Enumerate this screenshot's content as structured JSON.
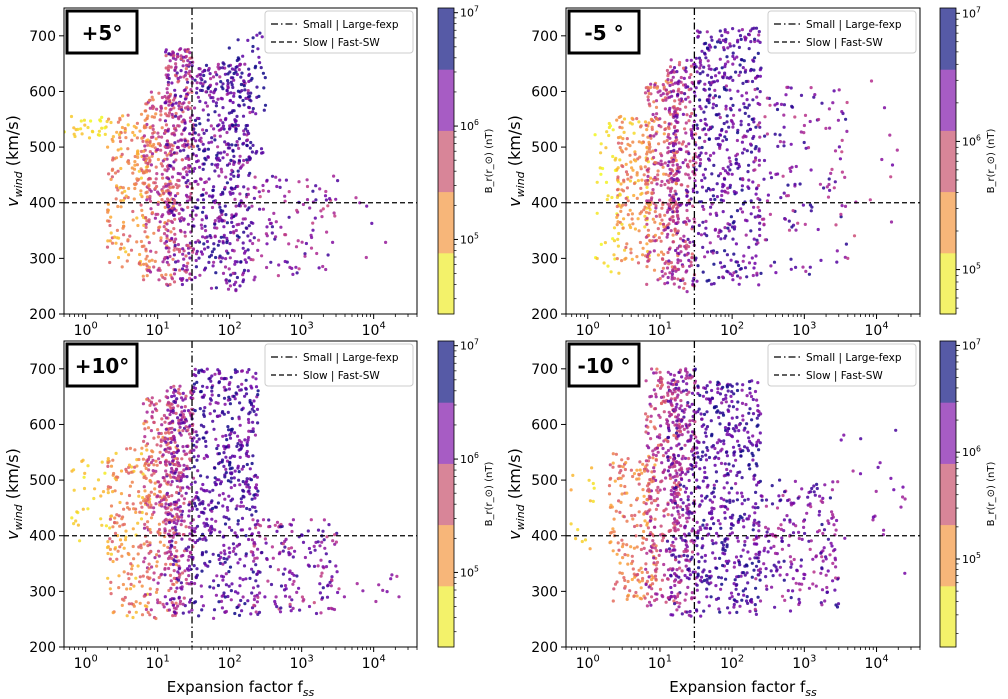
{
  "figure": {
    "xlabel": "Expansion factor f",
    "xlabel_sub": "ss",
    "ylabel": "v",
    "ylabel_sub": "wind",
    "ylabel_unit": " (km/s)",
    "colorbar_label": "B_r(r_⊙) (nT)",
    "legend": [
      {
        "label": "Small | Large-fexp",
        "style": "dashdot"
      },
      {
        "label": "Slow | Fast-SW",
        "style": "dashed"
      }
    ],
    "colormap": [
      "#f0f921",
      "#fca636",
      "#e16462",
      "#b12a90",
      "#6a00a8",
      "#0d0887"
    ],
    "colorbar_bands": [
      "#f3f26a",
      "#f7b679",
      "#d88598",
      "#a75cc4",
      "#565aa6"
    ]
  },
  "chart_data": [
    {
      "type": "scatter",
      "panel_label": "+5°",
      "xscale": "log",
      "xlim": [
        0.5,
        40000
      ],
      "ylim": [
        200,
        750
      ],
      "x_ticks": [
        {
          "v": 1,
          "e": "0"
        },
        {
          "v": 10,
          "e": "1"
        },
        {
          "v": 100,
          "e": "2"
        },
        {
          "v": 1000,
          "e": "3"
        },
        {
          "v": 10000,
          "e": "4"
        }
      ],
      "y_ticks": [
        200,
        300,
        400,
        500,
        600,
        700
      ],
      "vline_x": 30,
      "hline_y": 400,
      "legend_loc": "upper right",
      "colorbar": {
        "scale": "log",
        "ticks": [
          {
            "v": 100000,
            "e": "5"
          },
          {
            "v": 1000000,
            "e": "6"
          },
          {
            "v": 10000000,
            "e": "7"
          }
        ],
        "range": [
          22000,
          11000000
        ]
      },
      "clusters": [
        {
          "x_log": [
            -0.3,
            0.3
          ],
          "y": [
            510,
            560
          ],
          "c_log": [
            4.3,
            4.8
          ],
          "n": 28
        },
        {
          "x_log": [
            0.3,
            0.9
          ],
          "y": [
            280,
            560
          ],
          "c_log": [
            4.6,
            5.6
          ],
          "n": 190
        },
        {
          "x_log": [
            0.8,
            1.25
          ],
          "y": [
            260,
            600
          ],
          "c_log": [
            5.0,
            6.2
          ],
          "n": 250
        },
        {
          "x_log": [
            1.1,
            1.5
          ],
          "y": [
            250,
            680
          ],
          "c_log": [
            5.4,
            6.8
          ],
          "n": 360
        },
        {
          "x_log": [
            1.5,
            2.3
          ],
          "y": [
            240,
            650
          ],
          "c_log": [
            6.0,
            7.1
          ],
          "n": 480
        },
        {
          "x_log": [
            1.9,
            2.5
          ],
          "y": [
            480,
            715
          ],
          "c_log": [
            6.5,
            7.1
          ],
          "n": 80
        },
        {
          "x_log": [
            2.3,
            3.5
          ],
          "y": [
            260,
            450
          ],
          "c_log": [
            5.7,
            6.9
          ],
          "n": 110
        },
        {
          "x_log": [
            3.5,
            4.2
          ],
          "y": [
            290,
            420
          ],
          "c_log": [
            5.7,
            6.6
          ],
          "n": 6
        }
      ]
    },
    {
      "type": "scatter",
      "panel_label": "-5 °",
      "xscale": "log",
      "xlim": [
        0.5,
        40000
      ],
      "ylim": [
        200,
        750
      ],
      "x_ticks": [
        {
          "v": 1,
          "e": "0"
        },
        {
          "v": 10,
          "e": "1"
        },
        {
          "v": 100,
          "e": "2"
        },
        {
          "v": 1000,
          "e": "3"
        },
        {
          "v": 10000,
          "e": "4"
        }
      ],
      "y_ticks": [
        200,
        300,
        400,
        500,
        600,
        700
      ],
      "vline_x": 30,
      "hline_y": 400,
      "legend_loc": "upper right",
      "colorbar": {
        "scale": "log",
        "ticks": [
          {
            "v": 100000,
            "e": "5"
          },
          {
            "v": 1000000,
            "e": "6"
          },
          {
            "v": 10000000,
            "e": "7"
          }
        ],
        "range": [
          45000,
          11000000
        ]
      },
      "clusters": [
        {
          "x_log": [
            0.1,
            0.45
          ],
          "y": [
            270,
            560
          ],
          "c_log": [
            4.6,
            5.0
          ],
          "n": 45
        },
        {
          "x_log": [
            0.4,
            0.9
          ],
          "y": [
            280,
            560
          ],
          "c_log": [
            4.8,
            5.7
          ],
          "n": 170
        },
        {
          "x_log": [
            0.8,
            1.25
          ],
          "y": [
            250,
            620
          ],
          "c_log": [
            5.2,
            6.3
          ],
          "n": 260
        },
        {
          "x_log": [
            1.1,
            1.5
          ],
          "y": [
            240,
            660
          ],
          "c_log": [
            5.6,
            6.8
          ],
          "n": 330
        },
        {
          "x_log": [
            1.5,
            2.4
          ],
          "y": [
            250,
            715
          ],
          "c_log": [
            6.2,
            7.1
          ],
          "n": 470
        },
        {
          "x_log": [
            2.3,
            3.6
          ],
          "y": [
            270,
            610
          ],
          "c_log": [
            5.9,
            7.0
          ],
          "n": 150
        },
        {
          "x_log": [
            3.5,
            4.3
          ],
          "y": [
            280,
            640
          ],
          "c_log": [
            5.8,
            6.6
          ],
          "n": 14
        }
      ]
    },
    {
      "type": "scatter",
      "panel_label": "+10°",
      "xscale": "log",
      "xlim": [
        0.5,
        40000
      ],
      "ylim": [
        200,
        750
      ],
      "x_ticks": [
        {
          "v": 1,
          "e": "0"
        },
        {
          "v": 10,
          "e": "1"
        },
        {
          "v": 100,
          "e": "2"
        },
        {
          "v": 1000,
          "e": "3"
        },
        {
          "v": 10000,
          "e": "4"
        }
      ],
      "y_ticks": [
        200,
        300,
        400,
        500,
        600,
        700
      ],
      "vline_x": 30,
      "hline_y": 400,
      "legend_loc": "upper right",
      "colorbar": {
        "scale": "log",
        "ticks": [
          {
            "v": 100000,
            "e": "5"
          },
          {
            "v": 1000000,
            "e": "6"
          },
          {
            "v": 10000000,
            "e": "7"
          }
        ],
        "range": [
          22000,
          11000000
        ]
      },
      "clusters": [
        {
          "x_log": [
            -0.2,
            0.35
          ],
          "y": [
            380,
            540
          ],
          "c_log": [
            4.4,
            4.8
          ],
          "n": 30
        },
        {
          "x_log": [
            0.3,
            0.9
          ],
          "y": [
            250,
            560
          ],
          "c_log": [
            4.6,
            5.6
          ],
          "n": 180
        },
        {
          "x_log": [
            0.8,
            1.3
          ],
          "y": [
            250,
            650
          ],
          "c_log": [
            5.0,
            6.2
          ],
          "n": 260
        },
        {
          "x_log": [
            1.1,
            1.5
          ],
          "y": [
            260,
            670
          ],
          "c_log": [
            5.5,
            6.8
          ],
          "n": 360
        },
        {
          "x_log": [
            1.5,
            2.4
          ],
          "y": [
            250,
            700
          ],
          "c_log": [
            6.2,
            7.1
          ],
          "n": 500
        },
        {
          "x_log": [
            2.3,
            3.5
          ],
          "y": [
            260,
            430
          ],
          "c_log": [
            5.7,
            6.9
          ],
          "n": 170
        },
        {
          "x_log": [
            3.5,
            4.5
          ],
          "y": [
            280,
            330
          ],
          "c_log": [
            5.8,
            6.5
          ],
          "n": 12
        }
      ]
    },
    {
      "type": "scatter",
      "panel_label": "-10 °",
      "xscale": "log",
      "xlim": [
        0.5,
        40000
      ],
      "ylim": [
        200,
        750
      ],
      "x_ticks": [
        {
          "v": 1,
          "e": "0"
        },
        {
          "v": 10,
          "e": "1"
        },
        {
          "v": 100,
          "e": "2"
        },
        {
          "v": 1000,
          "e": "3"
        },
        {
          "v": 10000,
          "e": "4"
        }
      ],
      "y_ticks": [
        200,
        300,
        400,
        500,
        600,
        700
      ],
      "vline_x": 30,
      "hline_y": 400,
      "legend_loc": "upper right",
      "colorbar": {
        "scale": "log",
        "ticks": [
          {
            "v": 100000,
            "e": "5"
          },
          {
            "v": 1000000,
            "e": "6"
          },
          {
            "v": 10000000,
            "e": "7"
          }
        ],
        "range": [
          15000,
          11000000
        ]
      },
      "clusters": [
        {
          "x_log": [
            -0.25,
            0.1
          ],
          "y": [
            370,
            540
          ],
          "c_log": [
            4.3,
            4.8
          ],
          "n": 14
        },
        {
          "x_log": [
            0.3,
            0.95
          ],
          "y": [
            280,
            550
          ],
          "c_log": [
            4.7,
            5.6
          ],
          "n": 190
        },
        {
          "x_log": [
            0.8,
            1.3
          ],
          "y": [
            260,
            700
          ],
          "c_log": [
            5.2,
            6.3
          ],
          "n": 260
        },
        {
          "x_log": [
            1.1,
            1.5
          ],
          "y": [
            250,
            700
          ],
          "c_log": [
            5.6,
            6.9
          ],
          "n": 340
        },
        {
          "x_log": [
            1.5,
            2.4
          ],
          "y": [
            255,
            680
          ],
          "c_log": [
            6.2,
            7.1
          ],
          "n": 480
        },
        {
          "x_log": [
            2.3,
            3.5
          ],
          "y": [
            260,
            500
          ],
          "c_log": [
            5.8,
            7.0
          ],
          "n": 220
        },
        {
          "x_log": [
            3.5,
            4.4
          ],
          "y": [
            270,
            590
          ],
          "c_log": [
            5.9,
            6.7
          ],
          "n": 22
        }
      ]
    }
  ]
}
